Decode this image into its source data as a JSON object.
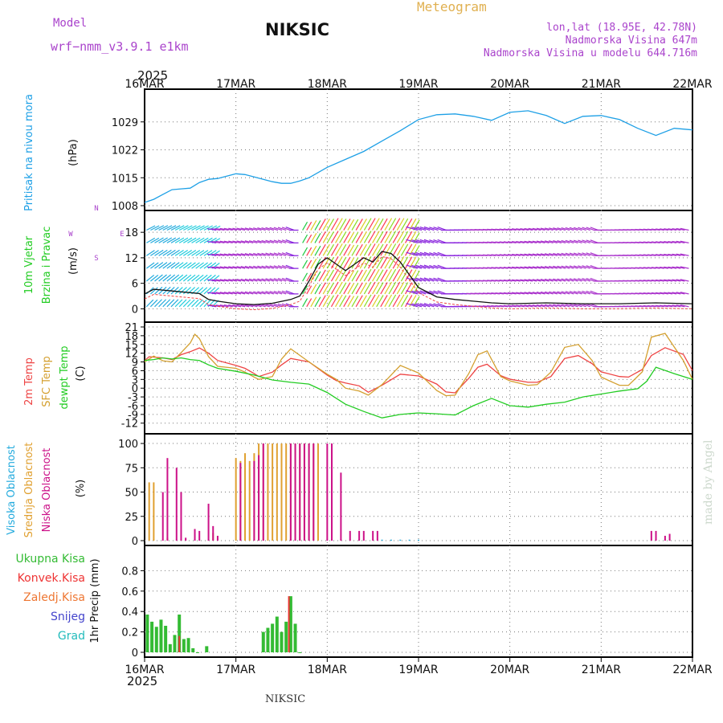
{
  "header": {
    "model_label": "Model",
    "model_name": "wrf−nmm_v3.9.1  e1km",
    "station_title": "NIKSIC",
    "chart_kind": "Meteogram",
    "coords": "lon,lat (18.95E, 42.78N)",
    "elevation": "Nadmorska Visina 647m",
    "model_elevation": "Nadmorska Visina u modelu 644.716m",
    "year_top": "2025",
    "year_bottom": "2025",
    "footer_station": "NIKSIC",
    "credit": "made by Angel"
  },
  "colors": {
    "pressure": "#1ea0e6",
    "temp2m": "#ee4444",
    "sfc_temp": "#d4a030",
    "dewpt": "#22cc22",
    "high_cloud": "#22aadd",
    "mid_cloud": "#e0a030",
    "low_cloud": "#cc1188",
    "precip_total": "#33bb33",
    "precip_conv": "#ee3333",
    "precip_frozen": "#ee7733",
    "snow": "#4444cc",
    "hail": "#22bbbb",
    "wind_speed": "#111111",
    "wind_dir": "#ee4444",
    "model_purple": "#aa44cc",
    "meteo_gold": "#e0b050"
  },
  "x_axis": {
    "ticks": [
      "16MAR",
      "17MAR",
      "18MAR",
      "19MAR",
      "20MAR",
      "21MAR",
      "22MAR"
    ],
    "range_days": [
      0,
      6
    ]
  },
  "chart_data": [
    {
      "type": "line",
      "panel": "pressure",
      "ylabel": "Pritisak na nivou mora",
      "unit": "(hPa)",
      "ylim": [
        1008,
        1036
      ],
      "yticks": [
        1008,
        1015,
        1022,
        1029
      ],
      "series": [
        {
          "key": "pressure",
          "x": [
            0,
            0.1,
            0.2,
            0.3,
            0.4,
            0.5,
            0.6,
            0.7,
            0.8,
            0.9,
            1.0,
            1.1,
            1.2,
            1.3,
            1.4,
            1.5,
            1.6,
            1.7,
            1.8,
            2.0,
            2.2,
            2.4,
            2.6,
            2.8,
            3.0,
            3.2,
            3.4,
            3.6,
            3.8,
            4.0,
            4.2,
            4.4,
            4.6,
            4.8,
            5.0,
            5.2,
            5.4,
            5.6,
            5.8,
            6.0
          ],
          "values": [
            1008.8,
            1009.6,
            1010.8,
            1012.0,
            1012.2,
            1012.4,
            1013.8,
            1014.6,
            1014.8,
            1015.4,
            1016.0,
            1015.8,
            1015.2,
            1014.6,
            1014.0,
            1013.6,
            1013.6,
            1014.2,
            1015.0,
            1017.6,
            1019.6,
            1021.6,
            1024.2,
            1026.8,
            1029.6,
            1030.8,
            1031.0,
            1030.4,
            1029.4,
            1031.4,
            1031.8,
            1030.6,
            1028.6,
            1030.4,
            1030.6,
            1029.6,
            1027.4,
            1025.6,
            1027.4,
            1027.0
          ]
        }
      ]
    },
    {
      "type": "line",
      "panel": "wind",
      "ylabel": "10m Vjetar",
      "ylabel2": "Brzina i Pravac",
      "unit": "(m/s)",
      "compass": [
        "N",
        "E",
        "S",
        "W"
      ],
      "ylim": [
        -2,
        22
      ],
      "yticks": [
        0,
        6,
        12,
        18
      ],
      "series": [
        {
          "key": "wind_speed",
          "x": [
            0,
            0.1,
            0.2,
            0.3,
            0.4,
            0.5,
            0.6,
            0.7,
            0.8,
            1.0,
            1.2,
            1.4,
            1.6,
            1.7,
            1.8,
            1.9,
            2.0,
            2.1,
            2.2,
            2.3,
            2.4,
            2.5,
            2.6,
            2.7,
            2.8,
            2.9,
            3.0,
            3.2,
            3.4,
            3.6,
            3.8,
            4.0,
            4.4,
            4.8,
            5.2,
            5.6,
            6.0
          ],
          "values": [
            3.5,
            4.6,
            4.4,
            4.2,
            4.0,
            3.8,
            3.6,
            2.2,
            1.8,
            1.2,
            1.0,
            1.3,
            2.2,
            3.0,
            6.5,
            10.5,
            12.0,
            10.5,
            9.0,
            10.5,
            12.0,
            11.0,
            13.5,
            13.0,
            11.0,
            8.0,
            5.0,
            2.8,
            2.2,
            1.8,
            1.4,
            1.2,
            1.4,
            1.2,
            1.2,
            1.4,
            1.2
          ]
        }
      ]
    },
    {
      "type": "line",
      "panel": "temperature",
      "series_labels": [
        "2m Temp",
        "SFC Temp",
        "dewpt Temp"
      ],
      "unit": "(C)",
      "ylim": [
        -14,
        21
      ],
      "yticks": [
        -12,
        -9,
        -6,
        -3,
        0,
        3,
        6,
        9,
        12,
        15,
        18,
        21
      ],
      "series": [
        {
          "key": "temp2m",
          "x": [
            0,
            0.05,
            0.2,
            0.3,
            0.4,
            0.5,
            0.6,
            0.7,
            0.8,
            1.0,
            1.1,
            1.2,
            1.25,
            1.4,
            1.5,
            1.6,
            1.8,
            2.0,
            2.1,
            2.2,
            2.35,
            2.45,
            2.6,
            2.8,
            3.0,
            3.2,
            3.3,
            3.4,
            3.55,
            3.65,
            3.75,
            3.9,
            4.0,
            4.2,
            4.3,
            4.45,
            4.6,
            4.75,
            4.9,
            5.0,
            5.2,
            5.3,
            5.45,
            5.55,
            5.7,
            5.9,
            6.0
          ],
          "values": [
            9.5,
            10.8,
            10.4,
            9.8,
            11.5,
            12.5,
            13.8,
            12.0,
            9.5,
            7.8,
            6.8,
            5.0,
            4.0,
            5.5,
            8.0,
            10.2,
            9.0,
            4.5,
            2.6,
            1.8,
            0.8,
            -1.4,
            1.0,
            4.8,
            4.2,
            1.4,
            -1.3,
            -1.6,
            3.4,
            7.2,
            8.2,
            4.3,
            3.1,
            2.0,
            2.0,
            4.0,
            10.2,
            11.2,
            8.4,
            5.6,
            4.0,
            3.8,
            6.4,
            11.2,
            13.9,
            11.6,
            6.0
          ]
        },
        {
          "key": "sfc_temp",
          "x": [
            0,
            0.1,
            0.2,
            0.3,
            0.4,
            0.5,
            0.55,
            0.6,
            0.7,
            0.8,
            1.0,
            1.1,
            1.2,
            1.25,
            1.4,
            1.5,
            1.6,
            1.8,
            2.0,
            2.1,
            2.2,
            2.35,
            2.45,
            2.6,
            2.8,
            3.0,
            3.2,
            3.3,
            3.4,
            3.55,
            3.65,
            3.75,
            3.9,
            4.0,
            4.2,
            4.3,
            4.45,
            4.6,
            4.75,
            4.9,
            5.0,
            5.2,
            5.3,
            5.45,
            5.55,
            5.7,
            5.9,
            6.0
          ],
          "values": [
            9.0,
            11.0,
            9.4,
            9.0,
            12.2,
            15.5,
            18.5,
            17.0,
            10.8,
            7.5,
            6.8,
            5.5,
            3.8,
            3.0,
            4.0,
            10.0,
            13.5,
            9.0,
            4.8,
            3.0,
            0.0,
            -1.0,
            -2.4,
            1.2,
            7.8,
            5.2,
            -0.8,
            -2.6,
            -2.4,
            5.0,
            11.5,
            12.8,
            4.0,
            2.5,
            1.0,
            1.2,
            5.5,
            14.0,
            15.0,
            9.5,
            3.8,
            1.0,
            1.0,
            5.6,
            17.5,
            18.8,
            9.5,
            3.0
          ]
        },
        {
          "key": "dewpt",
          "x": [
            0,
            0.1,
            0.2,
            0.3,
            0.4,
            0.5,
            0.6,
            0.7,
            0.8,
            1.0,
            1.2,
            1.4,
            1.6,
            1.8,
            2.0,
            2.2,
            2.4,
            2.6,
            2.8,
            3.0,
            3.2,
            3.4,
            3.6,
            3.8,
            4.0,
            4.2,
            4.4,
            4.6,
            4.8,
            5.0,
            5.2,
            5.4,
            5.5,
            5.6,
            5.8,
            6.0
          ],
          "values": [
            9.5,
            9.8,
            10.4,
            10.0,
            10.4,
            9.8,
            9.5,
            8.0,
            6.8,
            5.8,
            4.5,
            2.8,
            2.0,
            1.4,
            -1.5,
            -5.5,
            -8.0,
            -10.2,
            -9.0,
            -8.5,
            -8.8,
            -9.2,
            -6.0,
            -3.5,
            -6.0,
            -6.5,
            -5.5,
            -4.8,
            -3.0,
            -2.0,
            -1.0,
            -0.2,
            2.4,
            7.2,
            5.0,
            3.0
          ]
        }
      ]
    },
    {
      "type": "bar",
      "panel": "cloud",
      "series_labels": [
        "Visoka Oblacnost",
        "Srednja Oblacnost",
        "Niska Oblacnost"
      ],
      "unit": "(%)",
      "ylim": [
        0,
        105
      ],
      "yticks": [
        0,
        25,
        50,
        75,
        100
      ],
      "series": [
        {
          "key": "mid_cloud",
          "x": [
            0.05,
            0.1,
            0.25,
            0.75,
            1.0,
            1.05,
            1.1,
            1.15,
            1.2,
            1.25,
            1.3,
            1.35,
            1.4,
            1.45,
            1.5,
            1.55,
            1.6,
            1.65,
            1.7,
            1.75,
            1.8,
            1.85,
            1.9
          ],
          "values": [
            60,
            60,
            3,
            8,
            85,
            82,
            90,
            82,
            90,
            100,
            100,
            100,
            100,
            100,
            100,
            100,
            100,
            100,
            100,
            100,
            100,
            100,
            100
          ]
        },
        {
          "key": "low_cloud",
          "x": [
            0.2,
            0.25,
            0.35,
            0.4,
            0.45,
            0.55,
            0.6,
            0.7,
            0.75,
            0.8,
            1.05,
            1.2,
            1.25,
            1.3,
            1.6,
            1.65,
            1.7,
            1.75,
            1.8,
            1.85,
            2.0,
            2.05,
            2.15,
            2.25,
            2.35,
            2.4,
            2.5,
            2.55,
            5.55,
            5.6,
            5.7,
            5.75
          ],
          "values": [
            50,
            85,
            75,
            50,
            3,
            12,
            10,
            38,
            15,
            5,
            80,
            82,
            88,
            100,
            100,
            100,
            100,
            100,
            100,
            100,
            100,
            100,
            70,
            10,
            10,
            10,
            10,
            10,
            10,
            10,
            5,
            7
          ]
        },
        {
          "key": "high_cloud",
          "x": [
            2.6,
            2.7,
            2.8,
            2.9,
            3.0
          ],
          "values": [
            1,
            1,
            1,
            1,
            1
          ]
        }
      ]
    },
    {
      "type": "bar",
      "panel": "precipitation",
      "series_labels": [
        "Ukupna Kisa",
        "Konvek.Kisa",
        "Zaledj.Kisa",
        "Snijeg",
        "Grad"
      ],
      "ylabel": "1hr Precip (mm)",
      "ylim": [
        0,
        1.0
      ],
      "yticks": [
        0,
        0.2,
        0.4,
        0.6,
        0.8
      ],
      "series": [
        {
          "key": "precip_total",
          "x": [
            0.03,
            0.08,
            0.13,
            0.18,
            0.23,
            0.28,
            0.33,
            0.38,
            0.43,
            0.48,
            0.53,
            0.58,
            0.68,
            1.3,
            1.35,
            1.4,
            1.45,
            1.5,
            1.55,
            1.6,
            1.65,
            1.7
          ],
          "values": [
            0.37,
            0.3,
            0.25,
            0.32,
            0.26,
            0.08,
            0.17,
            0.37,
            0.13,
            0.14,
            0.04,
            0.0,
            0.06,
            0.2,
            0.24,
            0.28,
            0.35,
            0.2,
            0.3,
            0.55,
            0.28,
            0.0
          ]
        },
        {
          "key": "precip_conv",
          "x": [
            0.38,
            1.58
          ],
          "values": [
            0.16,
            0.55
          ]
        }
      ]
    }
  ]
}
